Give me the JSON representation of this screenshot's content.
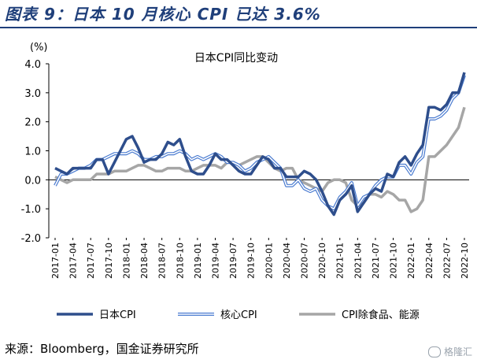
{
  "header": {
    "figure_title": "图表 9：日本 10 月核心 CPI 已达 3.6%"
  },
  "footer": {
    "source": "来源：Bloomberg，国金证券研究所",
    "watermark": "格隆汇"
  },
  "colors": {
    "cpi": "#2e4e8c",
    "core_cpi": "#4a7bd0",
    "core_cpi_inner": "#ffffff",
    "cpi_ex": "#a6a6a6",
    "title": "#1f3f7a"
  },
  "chart_data": {
    "type": "line",
    "title": "日本CPI同比变动",
    "ylabel": "(%)",
    "ylim": [
      -2.0,
      4.0
    ],
    "yticks": [
      "-2.0",
      "-1.0",
      "0.0",
      "1.0",
      "2.0",
      "3.0",
      "4.0"
    ],
    "xtick_labels": [
      "2017-01",
      "2017-04",
      "2017-07",
      "2017-10",
      "2018-01",
      "2018-04",
      "2018-07",
      "2018-10",
      "2019-01",
      "2019-04",
      "2019-07",
      "2019-10",
      "2020-01",
      "2020-04",
      "2020-07",
      "2020-10",
      "2021-01",
      "2021-04",
      "2021-07",
      "2021-10",
      "2022-01",
      "2022-04",
      "2022-07",
      "2022-10"
    ],
    "x_start": "2017-01",
    "legend_position": "bottom",
    "series": [
      {
        "name": "日本CPI",
        "color_key": "cpi",
        "values": [
          0.4,
          0.3,
          0.2,
          0.4,
          0.4,
          0.4,
          0.4,
          0.7,
          0.7,
          0.2,
          0.6,
          1.0,
          1.4,
          1.5,
          1.1,
          0.6,
          0.7,
          0.7,
          0.9,
          1.3,
          1.2,
          1.4,
          0.8,
          0.3,
          0.2,
          0.2,
          0.5,
          0.9,
          0.7,
          0.7,
          0.5,
          0.3,
          0.2,
          0.2,
          0.5,
          0.8,
          0.7,
          0.4,
          0.4,
          0.1,
          0.1,
          0.1,
          0.3,
          0.2,
          0.0,
          -0.4,
          -0.9,
          -1.2,
          -0.7,
          -0.5,
          -0.2,
          -1.1,
          -0.8,
          -0.5,
          -0.3,
          -0.4,
          0.2,
          0.1,
          0.6,
          0.8,
          0.5,
          0.9,
          1.2,
          2.5,
          2.5,
          2.4,
          2.6,
          3.0,
          3.0,
          3.7
        ]
      },
      {
        "name": "核心CPI",
        "color_key": "core_cpi",
        "values": [
          -0.2,
          0.2,
          0.2,
          0.3,
          0.4,
          0.4,
          0.5,
          0.7,
          0.7,
          0.8,
          0.9,
          0.9,
          0.9,
          1.0,
          0.9,
          0.7,
          0.7,
          0.8,
          0.8,
          0.9,
          0.9,
          1.0,
          0.9,
          0.7,
          0.8,
          0.7,
          0.8,
          0.9,
          0.8,
          0.6,
          0.6,
          0.5,
          0.3,
          0.4,
          0.6,
          0.7,
          0.8,
          0.6,
          0.4,
          -0.2,
          -0.2,
          0.0,
          -0.3,
          -0.4,
          -0.3,
          -0.7,
          -0.9,
          -1.0,
          -0.6,
          -0.4,
          -0.1,
          -0.9,
          -0.6,
          -0.5,
          -0.2,
          0.0,
          0.1,
          0.1,
          0.5,
          0.5,
          0.2,
          0.6,
          0.8,
          2.1,
          2.1,
          2.2,
          2.4,
          2.8,
          3.0,
          3.6
        ]
      },
      {
        "name": "CPI除食品、能源",
        "color_key": "cpi_ex",
        "values": [
          0.1,
          0.0,
          -0.1,
          0.0,
          0.0,
          0.0,
          0.0,
          0.2,
          0.2,
          0.2,
          0.3,
          0.3,
          0.3,
          0.4,
          0.5,
          0.5,
          0.4,
          0.3,
          0.3,
          0.4,
          0.4,
          0.4,
          0.3,
          0.3,
          0.4,
          0.5,
          0.5,
          0.5,
          0.4,
          0.6,
          0.6,
          0.5,
          0.6,
          0.7,
          0.8,
          0.8,
          0.6,
          0.4,
          0.3,
          0.4,
          0.4,
          0.0,
          -0.1,
          -0.2,
          -0.3,
          -0.4,
          -0.1,
          0.0,
          0.0,
          -0.1,
          -0.7,
          -0.9,
          -0.8,
          -0.5,
          -0.5,
          -0.6,
          -0.4,
          -0.5,
          -0.7,
          -0.7,
          -1.1,
          -1.0,
          -0.7,
          0.8,
          0.8,
          1.0,
          1.2,
          1.5,
          1.8,
          2.5
        ]
      }
    ]
  }
}
